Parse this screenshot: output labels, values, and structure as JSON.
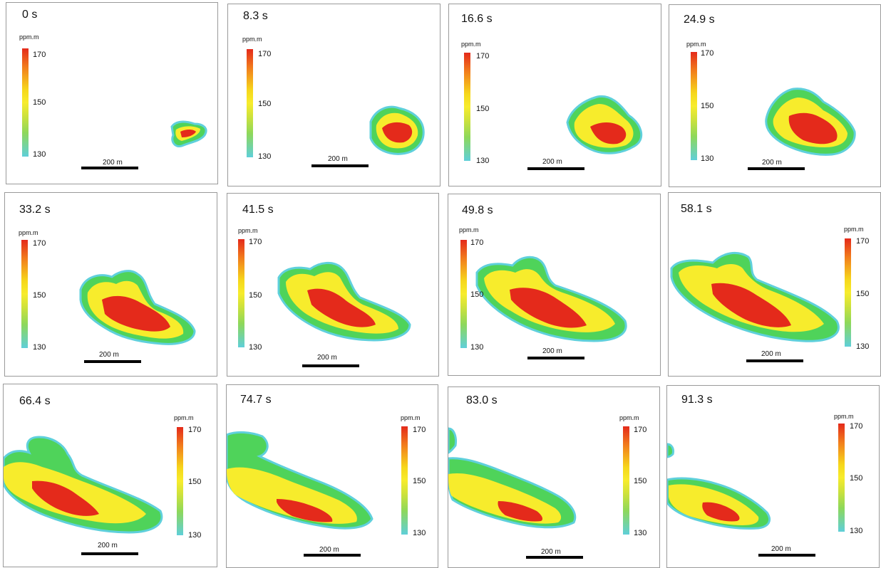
{
  "figure": {
    "colorbar": {
      "unit": "ppm.m",
      "ticks": [
        "170",
        "150",
        "130"
      ],
      "colors": [
        "#e42a1b",
        "#f2801c",
        "#f6d71b",
        "#cfe23b",
        "#8ed85a",
        "#5fcfd9"
      ]
    },
    "scalebar_label": "200 m",
    "panels": [
      {
        "time": "0 s"
      },
      {
        "time": "8.3 s"
      },
      {
        "time": "16.6 s"
      },
      {
        "time": "24.9 s"
      },
      {
        "time": "33.2 s"
      },
      {
        "time": "41.5 s"
      },
      {
        "time": "49.8 s"
      },
      {
        "time": "58.1 s"
      },
      {
        "time": "66.4 s"
      },
      {
        "time": "74.7 s"
      },
      {
        "time": "83.0 s"
      },
      {
        "time": "91.3 s"
      }
    ]
  }
}
